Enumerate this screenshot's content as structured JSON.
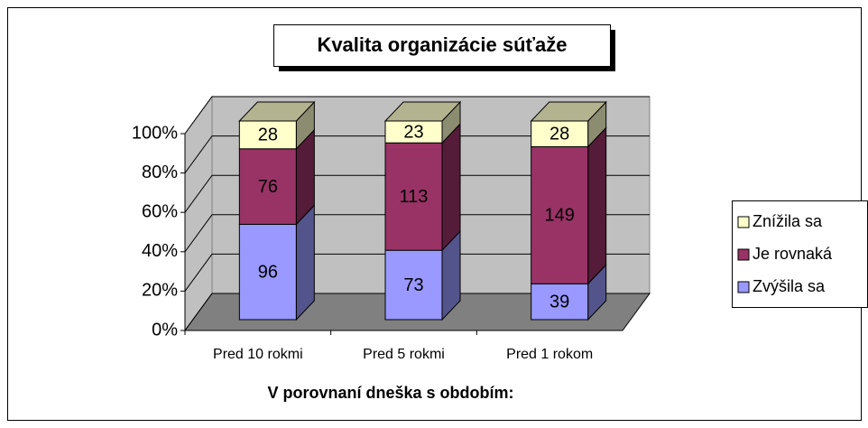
{
  "chart_data": {
    "type": "bar",
    "stacking": "percent",
    "title": "Kvalita organizácie súťaže",
    "x_label": "V porovnaní dneška s obdobím:",
    "categories": [
      "Pred 10 rokmi",
      "Pred 5 rokmi",
      "Pred 1 rokom"
    ],
    "series": [
      {
        "name": "Zvýšila sa",
        "color": "#9999ff",
        "values": [
          96,
          73,
          39
        ]
      },
      {
        "name": "Je rovnaká",
        "color": "#993366",
        "values": [
          76,
          113,
          149
        ]
      },
      {
        "name": "Znížila sa",
        "color": "#ffffcc",
        "values": [
          28,
          23,
          28
        ]
      }
    ],
    "ylim": [
      0,
      100
    ],
    "yticks": [
      {
        "value": 0,
        "label": "0%"
      },
      {
        "value": 20,
        "label": "20%"
      },
      {
        "value": 40,
        "label": "40%"
      },
      {
        "value": 60,
        "label": "60%"
      },
      {
        "value": 80,
        "label": "80%"
      },
      {
        "value": 100,
        "label": "100%"
      }
    ],
    "grid": true,
    "legend": "right"
  }
}
